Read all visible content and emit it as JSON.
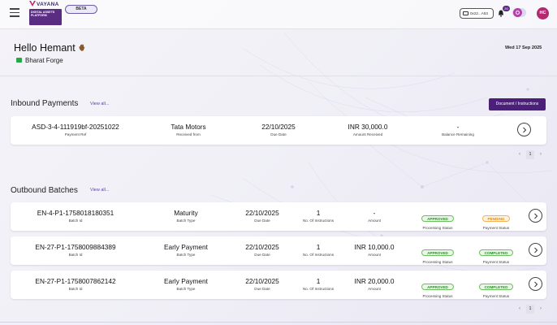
{
  "header": {
    "logo_word": "VAYANA",
    "logo_tagline": "DIGITAL ASSETS PLATFORM",
    "beta_label": "BETA",
    "account_short": "0x22...A53",
    "notification_count": "20",
    "avatar_initials": "HC"
  },
  "greeting": {
    "hello": "Hello Hemant",
    "company": "Bharat Forge",
    "date": "Wed 17 Sep 2025"
  },
  "inbound": {
    "title": "Inbound Payments",
    "view_all": "View all...",
    "doc_button": "Document / Instructions",
    "rows": [
      {
        "payment_ref": "ASD-3-4-111919bf-20251022",
        "payment_ref_label": "Payment Ref",
        "received_from": "Tata Motors",
        "received_from_label": "Received from",
        "due_date": "22/10/2025",
        "due_date_label": "Due Date",
        "amount_received": "INR 30,000.0",
        "amount_received_label": "Amount Received",
        "balance_remaining": "-",
        "balance_remaining_label": "Balance Remaining"
      }
    ],
    "page": "1"
  },
  "outbound": {
    "title": "Outbound Batches",
    "view_all": "View all...",
    "rows": [
      {
        "batch_id": "EN-4-P1-1758018180351",
        "batch_id_label": "Batch Id",
        "batch_type": "Maturity",
        "batch_type_label": "Batch Type",
        "due_date": "22/10/2025",
        "due_date_label": "Due Date",
        "instructions": "1",
        "instructions_label": "No. Of Instructions",
        "amount": "-",
        "amount_label": "Amount",
        "processing_status": "APPROVED",
        "processing_status_label": "Processing Status",
        "payment_status": "PENDING",
        "payment_status_label": "Payment Status"
      },
      {
        "batch_id": "EN-27-P1-1758009884389",
        "batch_id_label": "Batch Id",
        "batch_type": "Early Payment",
        "batch_type_label": "Batch Type",
        "due_date": "22/10/2025",
        "due_date_label": "Due Date",
        "instructions": "1",
        "instructions_label": "No. Of Instructions",
        "amount": "INR 10,000.0",
        "amount_label": "Amount",
        "processing_status": "APPROVED",
        "processing_status_label": "Processing Status",
        "payment_status": "COMPLETED",
        "payment_status_label": "Payment Status"
      },
      {
        "batch_id": "EN-27-P1-1758007862142",
        "batch_id_label": "Batch Id",
        "batch_type": "Early Payment",
        "batch_type_label": "Batch Type",
        "due_date": "22/10/2025",
        "due_date_label": "Due Date",
        "instructions": "1",
        "instructions_label": "No. Of Instructions",
        "amount": "INR 20,000.0",
        "amount_label": "Amount",
        "processing_status": "APPROVED",
        "processing_status_label": "Processing Status",
        "payment_status": "COMPLETED",
        "payment_status_label": "Payment Status"
      }
    ],
    "page": "1"
  },
  "colors": {
    "brand": "#4c1f7a",
    "accent": "#b340a8",
    "approved": "#2f8c2f",
    "pending": "#e08a12"
  }
}
